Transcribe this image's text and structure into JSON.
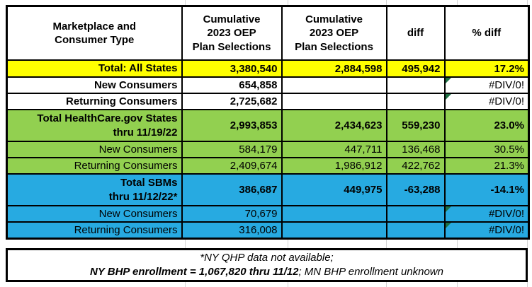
{
  "colors": {
    "yellow": "#FFFF00",
    "green": "#92D050",
    "blue": "#27AAE1",
    "white": "#FFFFFF",
    "border": "#000000",
    "error_triangle": "#1E7145"
  },
  "table": {
    "headers": [
      "Marketplace and\nConsumer Type",
      "Cumulative\n2023 OEP\nPlan Selections",
      "Cumulative\n2023 OEP\nPlan Selections",
      "diff",
      "% diff"
    ],
    "rows": [
      {
        "label": "Total: All States",
        "values": [
          "3,380,540",
          "2,884,598",
          "495,942",
          "17.2%"
        ],
        "bg": "yellow",
        "bold": true,
        "double": false,
        "error": false
      },
      {
        "label": "New Consumers",
        "values": [
          "654,858",
          "",
          "",
          "#DIV/0!"
        ],
        "bg": "white",
        "bold": true,
        "double": false,
        "error": true
      },
      {
        "label": "Returning Consumers",
        "values": [
          "2,725,682",
          "",
          "",
          "#DIV/0!"
        ],
        "bg": "white",
        "bold": true,
        "double": false,
        "error": true
      },
      {
        "label": "Total HealthCare.gov States\nthru 11/19/22",
        "values": [
          "2,993,853",
          "2,434,623",
          "559,230",
          "23.0%"
        ],
        "bg": "green",
        "bold": true,
        "double": true,
        "error": false
      },
      {
        "label": "New Consumers",
        "values": [
          "584,179",
          "447,711",
          "136,468",
          "30.5%"
        ],
        "bg": "green",
        "bold": false,
        "double": false,
        "error": false
      },
      {
        "label": "Returning Consumers",
        "values": [
          "2,409,674",
          "1,986,912",
          "422,762",
          "21.3%"
        ],
        "bg": "green",
        "bold": false,
        "double": false,
        "error": false
      },
      {
        "label": "Total SBMs\nthru 11/12/22*",
        "values": [
          "386,687",
          "449,975",
          "-63,288",
          "-14.1%"
        ],
        "bg": "blue",
        "bold": true,
        "double": true,
        "error": false
      },
      {
        "label": "New Consumers",
        "values": [
          "70,679",
          "",
          "",
          "#DIV/0!"
        ],
        "bg": "blue",
        "bold": false,
        "double": false,
        "error": true
      },
      {
        "label": "Returning Consumers",
        "values": [
          "316,008",
          "",
          "",
          "#DIV/0!"
        ],
        "bg": "blue",
        "bold": false,
        "double": false,
        "error": true
      }
    ]
  },
  "footnote": {
    "line1": "*NY QHP data not available;",
    "line2_bold": "NY BHP enrollment = 1,067,820 thru 11/12",
    "line2_regular": "; MN BHP enrollment unknown"
  }
}
